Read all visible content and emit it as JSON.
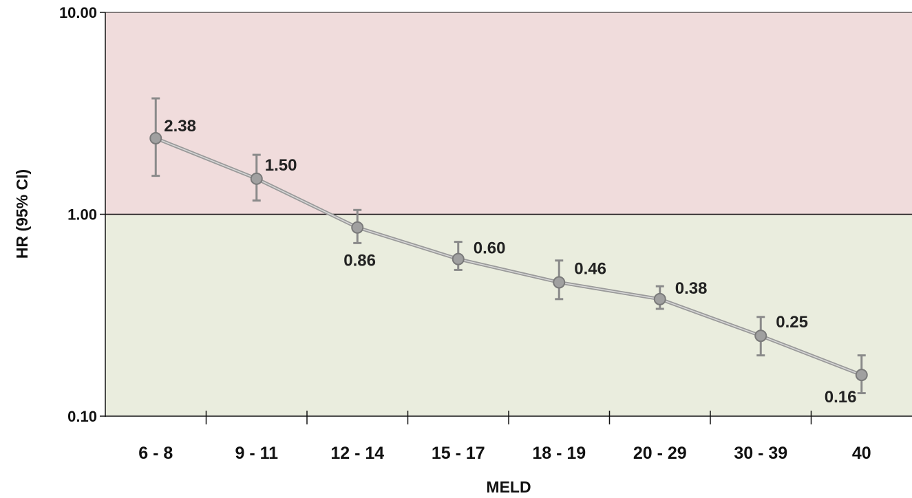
{
  "chart_data": {
    "type": "line",
    "title": "",
    "xlabel": "MELD",
    "ylabel": "HR (95% CI)",
    "yscale": "log",
    "ylim": [
      0.1,
      10
    ],
    "yticks": [
      "0.10",
      "1.00",
      "10.00"
    ],
    "grid": false,
    "categories": [
      "6 - 8",
      "9 - 11",
      "12 - 14",
      "15 - 17",
      "18 - 19",
      "20 - 29",
      "30 - 39",
      "40"
    ],
    "series": [
      {
        "values": [
          2.38,
          1.5,
          0.86,
          0.6,
          0.46,
          0.38,
          0.25,
          0.16
        ],
        "ci_lower": [
          1.55,
          1.17,
          0.72,
          0.53,
          0.38,
          0.34,
          0.2,
          0.13
        ],
        "ci_upper": [
          3.75,
          1.97,
          1.05,
          0.73,
          0.59,
          0.44,
          0.31,
          0.2
        ],
        "labels": [
          "2.38",
          "1.50",
          "0.86",
          "0.60",
          "0.46",
          "0.38",
          "0.25",
          "0.16"
        ]
      }
    ],
    "reference_line": 1.0,
    "region_colors": {
      "above_reference": "#f0dcdc",
      "below_reference": "#eaedde"
    },
    "line_color": "#9a9a9a"
  }
}
